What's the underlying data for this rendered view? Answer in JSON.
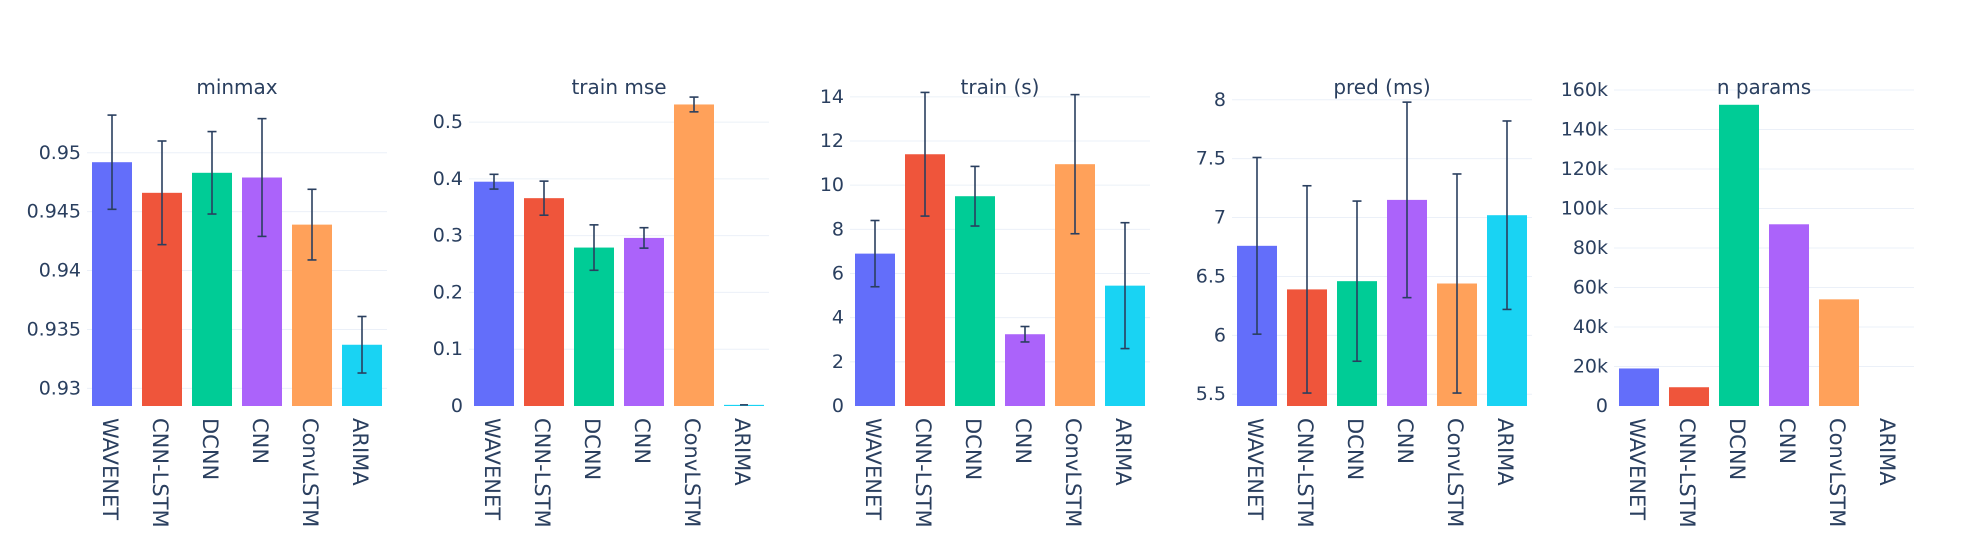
{
  "colors": {
    "WAVENET": "#636efa",
    "CNN-LSTM": "#ef553b",
    "DCNN": "#00cc96",
    "CNN": "#ab63fa",
    "ConvLSTM": "#ffa15a",
    "ARIMA": "#19d3f3",
    "grid": "#ebf0f8",
    "text": "#2a3f5f",
    "error_bar": "#2a3f5f"
  },
  "chart_data": [
    {
      "type": "bar",
      "title": "minmax",
      "categories": [
        "WAVENET",
        "CNN-LSTM",
        "DCNN",
        "CNN",
        "ConvLSTM",
        "ARIMA"
      ],
      "values": [
        0.9492,
        0.9466,
        0.9483,
        0.9479,
        0.9439,
        0.9337
      ],
      "errors": [
        0.004,
        0.0044,
        0.0035,
        0.005,
        0.003,
        0.0024
      ],
      "ylim": [
        0.9285,
        0.9555
      ],
      "ticks": [
        0.93,
        0.935,
        0.94,
        0.945,
        0.95
      ],
      "tick_labels": [
        "0.93",
        "0.935",
        "0.94",
        "0.945",
        "0.95"
      ],
      "grid": true
    },
    {
      "type": "bar",
      "title": "train mse",
      "categories": [
        "WAVENET",
        "CNN-LSTM",
        "DCNN",
        "CNN",
        "ConvLSTM",
        "ARIMA"
      ],
      "values": [
        0.395,
        0.366,
        0.279,
        0.296,
        0.531,
        0.002
      ],
      "errors": [
        0.013,
        0.03,
        0.04,
        0.018,
        0.013,
        0.0
      ],
      "ylim": [
        0,
        0.56
      ],
      "ticks": [
        0,
        0.1,
        0.2,
        0.3,
        0.4,
        0.5
      ],
      "tick_labels": [
        "0",
        "0.1",
        "0.2",
        "0.3",
        "0.4",
        "0.5"
      ],
      "grid": true
    },
    {
      "type": "bar",
      "title": "train (s)",
      "categories": [
        "WAVENET",
        "CNN-LSTM",
        "DCNN",
        "CNN",
        "ConvLSTM",
        "ARIMA"
      ],
      "values": [
        6.9,
        11.4,
        9.5,
        3.25,
        10.95,
        5.45
      ],
      "errors": [
        1.5,
        2.8,
        1.35,
        0.35,
        3.15,
        2.85
      ],
      "ylim": [
        0,
        14.4
      ],
      "ticks": [
        0,
        2,
        4,
        6,
        8,
        10,
        12,
        14
      ],
      "tick_labels": [
        "0",
        "2",
        "4",
        "6",
        "8",
        "10",
        "12",
        "14"
      ],
      "grid": true
    },
    {
      "type": "bar",
      "title": "pred (ms)",
      "categories": [
        "WAVENET",
        "CNN-LSTM",
        "DCNN",
        "CNN",
        "ConvLSTM",
        "ARIMA"
      ],
      "values": [
        6.76,
        6.39,
        6.46,
        7.15,
        6.44,
        7.02
      ],
      "errors": [
        0.75,
        0.88,
        0.68,
        0.83,
        0.93,
        0.8
      ],
      "ylim": [
        5.4,
        8.1
      ],
      "ticks": [
        5.5,
        6,
        6.5,
        7,
        7.5,
        8
      ],
      "tick_labels": [
        "5.5",
        "6",
        "6.5",
        "7",
        "7.5",
        "8"
      ],
      "grid": true
    },
    {
      "type": "bar",
      "title": "n params",
      "categories": [
        "WAVENET",
        "CNN-LSTM",
        "DCNN",
        "CNN",
        "ConvLSTM",
        "ARIMA"
      ],
      "values": [
        19000,
        9500,
        152500,
        92000,
        54000,
        0
      ],
      "errors": [
        0,
        0,
        0,
        0,
        0,
        0
      ],
      "ylim": [
        0,
        161000
      ],
      "ticks": [
        0,
        20000,
        40000,
        60000,
        80000,
        100000,
        120000,
        140000,
        160000
      ],
      "tick_labels": [
        "0",
        "20k",
        "40k",
        "60k",
        "80k",
        "100k",
        "120k",
        "140k",
        "160k"
      ],
      "grid": true
    }
  ]
}
